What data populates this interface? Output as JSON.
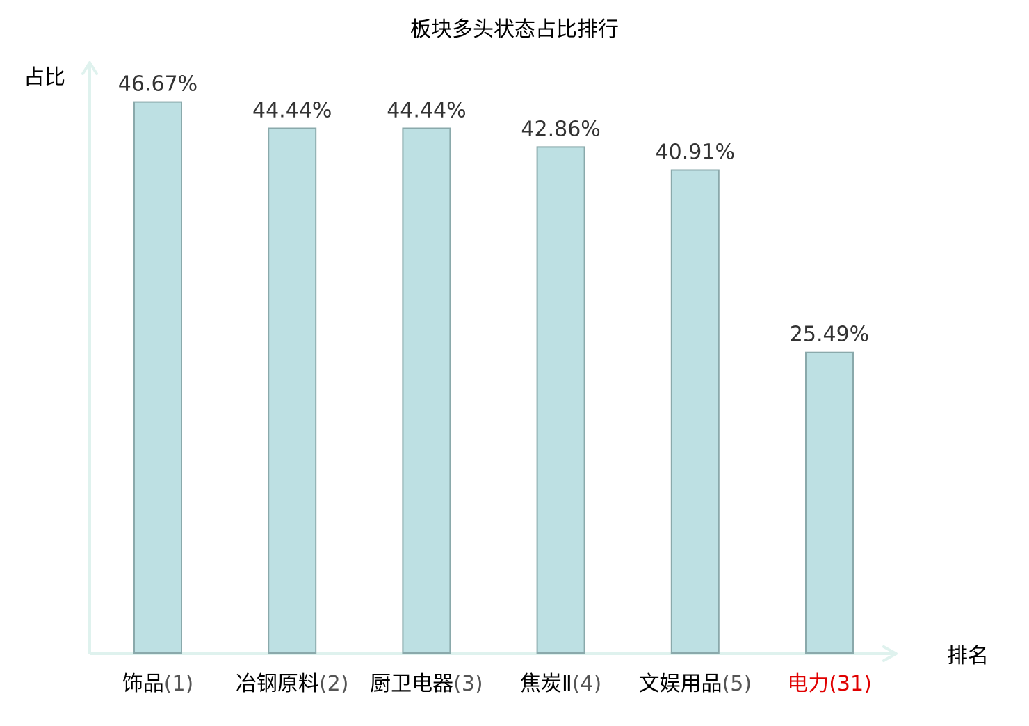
{
  "chart_data": {
    "type": "bar",
    "title": "板块多头状态占比排行",
    "ylabel": "占比",
    "xlabel": "排名",
    "ylim": [
      0,
      50
    ],
    "grid": false,
    "legend": "none",
    "categories": [
      {
        "name": "饰品",
        "rank": "(1)",
        "highlight": false
      },
      {
        "name": "冶钢原料",
        "rank": "(2)",
        "highlight": false
      },
      {
        "name": "厨卫电器",
        "rank": "(3)",
        "highlight": false
      },
      {
        "name": "焦炭Ⅱ",
        "rank": "(4)",
        "highlight": false
      },
      {
        "name": "文娱用品",
        "rank": "(5)",
        "highlight": false
      },
      {
        "name": "电力",
        "rank": "(31)",
        "highlight": true
      }
    ],
    "values": [
      46.67,
      44.44,
      44.44,
      42.86,
      40.91,
      25.49
    ],
    "value_labels": [
      "46.67%",
      "44.44%",
      "44.44%",
      "42.86%",
      "40.91%",
      "25.49%"
    ],
    "colors": {
      "bar_fill": "#bde0e3",
      "bar_stroke": "#8aa9ab",
      "axis": "#dff2ee",
      "text": "#000000",
      "value_text": "#333333",
      "rank_text": "#555555",
      "highlight": "#e00000"
    }
  }
}
